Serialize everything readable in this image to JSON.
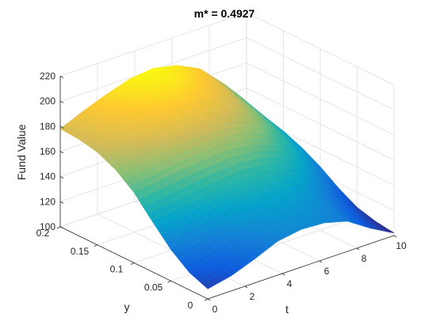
{
  "chart_data": {
    "type": "surface",
    "title": "m* = 0.4927",
    "xlabel": "t",
    "ylabel": "y",
    "zlabel": "Fund Value",
    "xlim": [
      0,
      10
    ],
    "ylim": [
      0,
      0.2
    ],
    "zlim": [
      100,
      220
    ],
    "x_ticks": [
      0,
      2,
      4,
      6,
      8,
      10
    ],
    "y_ticks": [
      0,
      0.05,
      0.1,
      0.15,
      0.2
    ],
    "z_ticks": [
      100,
      120,
      140,
      160,
      180,
      200,
      220
    ],
    "x_tick_labels": [
      "0",
      "2",
      "4",
      "6",
      "8",
      "10"
    ],
    "y_tick_labels": [
      "0",
      "0.05",
      "0.1",
      "0.15",
      "0.2"
    ],
    "z_tick_labels": [
      "100",
      "120",
      "140",
      "160",
      "180",
      "200",
      "220"
    ],
    "grid": true,
    "colormap": "parula",
    "colormap_colors": [
      "#352a87",
      "#0f5cdd",
      "#1481d6",
      "#06a4ca",
      "#2eb7a4",
      "#87bf77",
      "#d1bb59",
      "#fec832",
      "#f9fb0e"
    ],
    "x": [
      0,
      1.25,
      2.5,
      3.75,
      5,
      6.25,
      7.5,
      8.75,
      10
    ],
    "y": [
      0,
      0.025,
      0.05,
      0.075,
      0.1,
      0.125,
      0.15,
      0.175,
      0.2
    ],
    "z": [
      [
        108,
        112,
        119,
        127,
        130,
        129,
        124,
        112,
        102
      ],
      [
        114,
        118,
        124,
        131,
        134,
        133,
        128,
        116,
        104
      ],
      [
        125,
        128,
        132,
        137,
        140,
        139,
        134,
        122,
        108
      ],
      [
        140,
        142,
        145,
        148,
        150,
        149,
        144,
        132,
        116
      ],
      [
        156,
        158,
        161,
        163,
        164,
        162,
        156,
        143,
        126
      ],
      [
        167,
        171,
        175,
        177,
        177,
        174,
        167,
        153,
        134
      ],
      [
        174,
        180,
        185,
        188,
        188,
        184,
        176,
        160,
        140
      ],
      [
        177,
        184,
        190,
        195,
        196,
        192,
        183,
        166,
        144
      ],
      [
        178,
        186,
        193,
        199,
        201,
        197,
        188,
        170,
        147
      ]
    ]
  }
}
